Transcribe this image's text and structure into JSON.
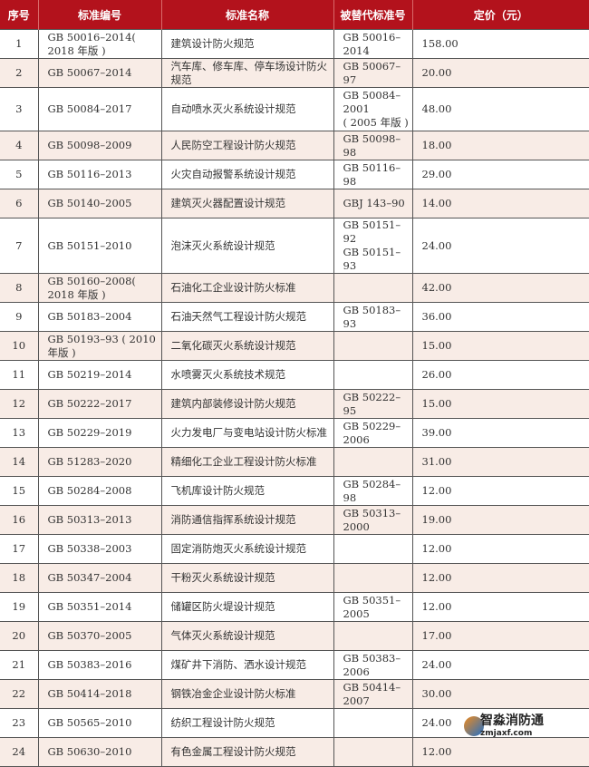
{
  "headers": [
    "序号",
    "标准编号",
    "标准名称",
    "被替代标准号",
    "定价（元）"
  ],
  "rows": [
    {
      "no": "1",
      "code": "GB 50016–2014( 2018 年版 )",
      "name": "建筑设计防火规范",
      "replaced": "GB 50016–2014",
      "price": "158.00"
    },
    {
      "no": "2",
      "code": "GB 50067–2014",
      "name": "汽车库、修车库、停车场设计防火规范",
      "replaced": "GB 50067–97",
      "price": "20.00"
    },
    {
      "no": "3",
      "code": "GB 50084–2017",
      "name": "自动喷水灭火系统设计规范",
      "replaced": "GB 50084–2001\n( 2005 年版 )",
      "price": "48.00"
    },
    {
      "no": "4",
      "code": "GB 50098–2009",
      "name": "人民防空工程设计防火规范",
      "replaced": "GB 50098–98",
      "price": "18.00"
    },
    {
      "no": "5",
      "code": "GB 50116–2013",
      "name": "火灾自动报警系统设计规范",
      "replaced": "GB 50116–98",
      "price": "29.00"
    },
    {
      "no": "6",
      "code": "GB 50140–2005",
      "name": "建筑灭火器配置设计规范",
      "replaced": "GBJ 143–90",
      "price": "14.00"
    },
    {
      "no": "7",
      "code": "GB 50151–2010",
      "name": "泡沫灭火系统设计规范",
      "replaced": "GB 50151–92\nGB 50151–93",
      "price": "24.00"
    },
    {
      "no": "8",
      "code": "GB 50160–2008( 2018 年版 )",
      "name": "石油化工企业设计防火标准",
      "replaced": "",
      "price": "42.00"
    },
    {
      "no": "9",
      "code": "GB 50183–2004",
      "name": "石油天然气工程设计防火规范",
      "replaced": "GB 50183–93",
      "price": "36.00"
    },
    {
      "no": "10",
      "code": "GB 50193–93 ( 2010 年版 )",
      "name": "二氧化碳灭火系统设计规范",
      "replaced": "",
      "price": "15.00"
    },
    {
      "no": "11",
      "code": "GB 50219–2014",
      "name": "水喷雾灭火系统技术规范",
      "replaced": "",
      "price": "26.00"
    },
    {
      "no": "12",
      "code": "GB 50222–2017",
      "name": "建筑内部装修设计防火规范",
      "replaced": "GB 50222–95",
      "price": "15.00"
    },
    {
      "no": "13",
      "code": "GB 50229–2019",
      "name": "火力发电厂与变电站设计防火标准",
      "replaced": "GB 50229–2006",
      "price": "39.00"
    },
    {
      "no": "14",
      "code": "GB 51283–2020",
      "name": "精细化工企业工程设计防火标准",
      "replaced": "",
      "price": "31.00"
    },
    {
      "no": "15",
      "code": "GB 50284–2008",
      "name": "飞机库设计防火规范",
      "replaced": "GB 50284–98",
      "price": "12.00"
    },
    {
      "no": "16",
      "code": "GB 50313–2013",
      "name": "消防通信指挥系统设计规范",
      "replaced": "GB 50313–2000",
      "price": "19.00"
    },
    {
      "no": "17",
      "code": "GB 50338–2003",
      "name": "固定消防炮灭火系统设计规范",
      "replaced": "",
      "price": "12.00"
    },
    {
      "no": "18",
      "code": "GB 50347–2004",
      "name": "干粉灭火系统设计规范",
      "replaced": "",
      "price": "12.00"
    },
    {
      "no": "19",
      "code": "GB 50351–2014",
      "name": "储罐区防火堤设计规范",
      "replaced": "GB 50351–2005",
      "price": "12.00"
    },
    {
      "no": "20",
      "code": "GB 50370–2005",
      "name": "气体灭火系统设计规范",
      "replaced": "",
      "price": "17.00"
    },
    {
      "no": "21",
      "code": "GB 50383–2016",
      "name": "煤矿井下消防、洒水设计规范",
      "replaced": "GB 50383–2006",
      "price": "24.00"
    },
    {
      "no": "22",
      "code": "GB 50414–2018",
      "name": "钢铁冶金企业设计防火标准",
      "replaced": "GB 50414–2007",
      "price": "30.00"
    },
    {
      "no": "23",
      "code": "GB 50565–2010",
      "name": "纺织工程设计防火规范",
      "replaced": "",
      "price": "24.00"
    },
    {
      "no": "24",
      "code": "GB 50630–2010",
      "name": "有色金属工程设计防火规范",
      "replaced": "",
      "price": "12.00"
    }
  ],
  "watermark": {
    "title": "智淼消防通",
    "url": "zmjaxf.com"
  },
  "colors": {
    "header": "#b3121c",
    "alt_row": "#f8ece6"
  }
}
